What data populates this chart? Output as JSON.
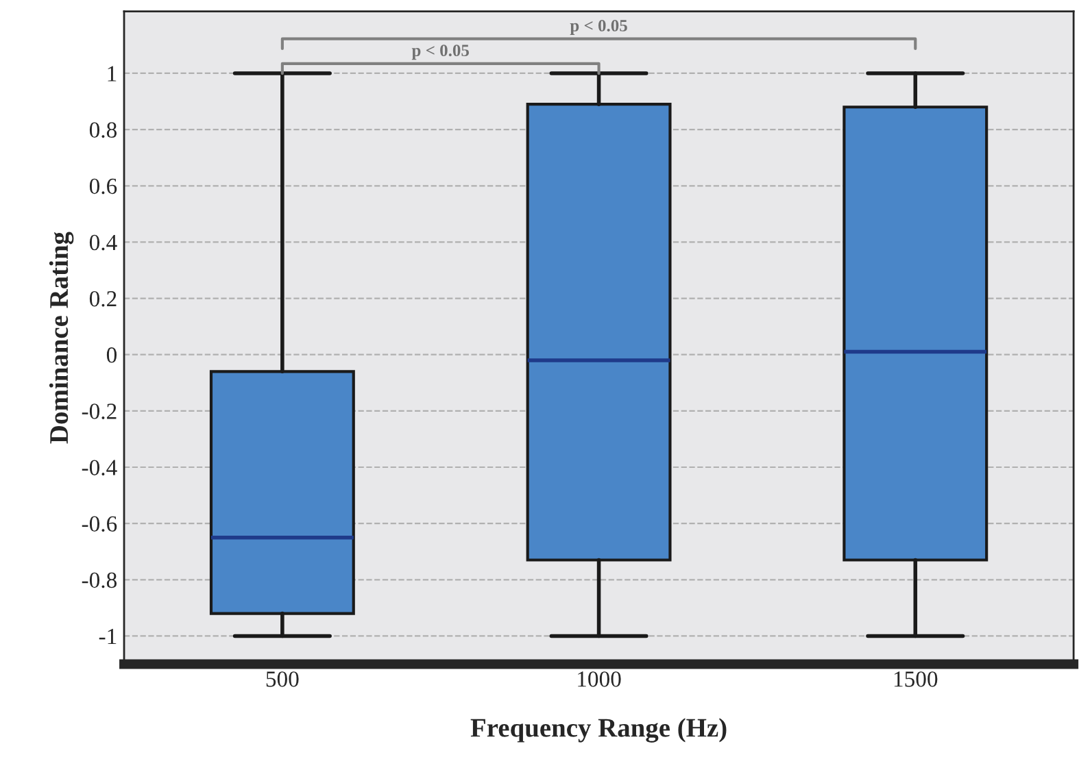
{
  "chart_data": {
    "type": "box",
    "xlabel": "Frequency Range (Hz)",
    "ylabel": "Dominance Rating",
    "categories": [
      "500",
      "1000",
      "1500"
    ],
    "boxes": [
      {
        "low": -1,
        "q1": -0.92,
        "median": -0.65,
        "q3": -0.06,
        "high": 1
      },
      {
        "low": -1,
        "q1": -0.73,
        "median": -0.02,
        "q3": 0.89,
        "high": 1
      },
      {
        "low": -1,
        "q1": -0.73,
        "median": 0.01,
        "q3": 0.88,
        "high": 1
      }
    ],
    "colors": [
      "#4a86c8",
      "#4a86c8",
      "#4a86c8"
    ],
    "ylim": [
      -1.1,
      1.22
    ],
    "yticks": [
      {
        "value": -1,
        "label": "-1"
      },
      {
        "value": -0.8,
        "label": "-0.8"
      },
      {
        "value": -0.6,
        "label": "-0.6"
      },
      {
        "value": -0.4,
        "label": "-0.4"
      },
      {
        "value": -0.2,
        "label": "-0.2"
      },
      0,
      0.2,
      0.4,
      0.6,
      0.8,
      1
    ],
    "grid": "y",
    "annotations": [
      "p < 0.05",
      "p < 0.05"
    ]
  }
}
